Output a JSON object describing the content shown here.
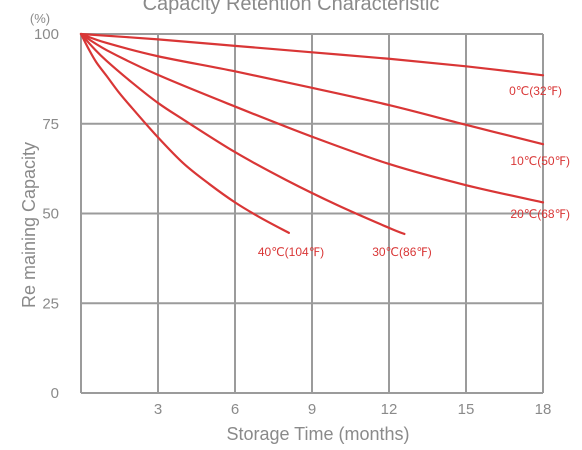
{
  "colors": {
    "grid": "#9b9b9b",
    "series": "#d93636",
    "text": "#8a8a8a"
  },
  "chart_data": {
    "type": "line",
    "title": "Capacity Retention Characteristic",
    "y_unit": "(%)",
    "xlabel": "Storage Time (months)",
    "ylabel": "Re maining Capacity",
    "xlim": [
      0,
      18
    ],
    "ylim": [
      0,
      100
    ],
    "x_ticks": [
      "3",
      "6",
      "9",
      "12",
      "15",
      "18"
    ],
    "y_ticks": [
      "0",
      "25",
      "50",
      "75",
      "100"
    ],
    "grid": true,
    "series": [
      {
        "name": "0℃(32℉)",
        "x": [
          0,
          3,
          6,
          9,
          12,
          15,
          18
        ],
        "y": [
          100,
          98.5,
          96.7,
          94.9,
          93.1,
          91,
          88.5
        ]
      },
      {
        "name": "10℃(50℉)",
        "x": [
          0,
          1,
          3,
          6,
          9,
          12,
          15,
          18
        ],
        "y": [
          100,
          97.5,
          93.8,
          89.6,
          85,
          80.2,
          74.7,
          69.3
        ]
      },
      {
        "name": "20℃(68℉)",
        "x": [
          0,
          1,
          3,
          6,
          9,
          12,
          15,
          18
        ],
        "y": [
          100,
          95.5,
          88.6,
          79.8,
          71.4,
          63.8,
          57.9,
          53.1
        ]
      },
      {
        "name": "30℃(86℉)",
        "x": [
          0,
          0.5,
          1,
          2,
          3,
          4,
          6,
          8,
          10,
          12,
          12.6
        ],
        "y": [
          100,
          96,
          92.5,
          86.4,
          80.8,
          76.1,
          67.1,
          59.3,
          52.3,
          46,
          44.3
        ]
      },
      {
        "name": "40℃(104℉)",
        "x": [
          0,
          0.3,
          0.6,
          1,
          1.5,
          2,
          3,
          4,
          5,
          6,
          7,
          8.1
        ],
        "y": [
          100,
          95.8,
          92.1,
          88.3,
          83.5,
          79.3,
          71.2,
          63.9,
          58.2,
          53.1,
          48.8,
          44.6
        ]
      }
    ]
  }
}
